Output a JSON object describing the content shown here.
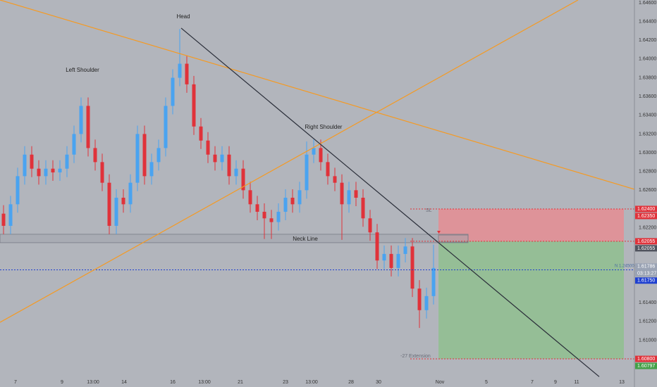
{
  "chart_data": {
    "type": "candlestick",
    "up_color": "#4aa3f0",
    "down_color": "#e0323a",
    "x": [
      1,
      3,
      5,
      7,
      9,
      11,
      13,
      15,
      17,
      19,
      21,
      23,
      25,
      27,
      29,
      31,
      33,
      35,
      37,
      39,
      41,
      43,
      45,
      47,
      49,
      51,
      53,
      55,
      57,
      59,
      61,
      63,
      65,
      67,
      69,
      71,
      73,
      75,
      77,
      79,
      81,
      83,
      85,
      87,
      89,
      91,
      93,
      95,
      97,
      99,
      101,
      103,
      105,
      107,
      109,
      111,
      113,
      115,
      117,
      119,
      121,
      123
    ],
    "open": [
      1.6235,
      1.6222,
      1.6245,
      1.6275,
      1.6298,
      1.6283,
      1.6275,
      1.6283,
      1.6279,
      1.6283,
      1.6298,
      1.632,
      1.635,
      1.6305,
      1.629,
      1.6268,
      1.6222,
      1.6252,
      1.6245,
      1.6268,
      1.632,
      1.6275,
      1.629,
      1.6305,
      1.635,
      1.638,
      1.6395,
      1.6373,
      1.6328,
      1.6313,
      1.6298,
      1.629,
      1.6298,
      1.6275,
      1.6283,
      1.626,
      1.6245,
      1.6237,
      1.623,
      1.6226,
      1.6237,
      1.6252,
      1.6245,
      1.626,
      1.6298,
      1.6305,
      1.629,
      1.6275,
      1.6268,
      1.6245,
      1.626,
      1.6252,
      1.623,
      1.6215,
      1.6185,
      1.6192,
      1.6177,
      1.6192,
      1.62,
      1.6155,
      1.6132,
      1.6147
    ],
    "high": [
      1.6244,
      1.6254,
      1.6284,
      1.6307,
      1.6307,
      1.6292,
      1.6292,
      1.6292,
      1.6292,
      1.6307,
      1.6329,
      1.6359,
      1.6359,
      1.6314,
      1.6299,
      1.6277,
      1.6261,
      1.6261,
      1.6277,
      1.6329,
      1.6329,
      1.6299,
      1.6314,
      1.6359,
      1.6389,
      1.6432,
      1.6404,
      1.6382,
      1.6337,
      1.6322,
      1.6307,
      1.6307,
      1.6307,
      1.6292,
      1.6292,
      1.6269,
      1.6254,
      1.6246,
      1.6239,
      1.6246,
      1.6261,
      1.6261,
      1.6269,
      1.6312,
      1.6314,
      1.6314,
      1.6299,
      1.6284,
      1.6277,
      1.6269,
      1.6269,
      1.6261,
      1.6239,
      1.6224,
      1.6201,
      1.6201,
      1.6201,
      1.6209,
      1.6209,
      1.6164,
      1.6156,
      1.6202
    ],
    "low": [
      1.6213,
      1.6213,
      1.6236,
      1.6266,
      1.6274,
      1.6266,
      1.6266,
      1.627,
      1.627,
      1.6274,
      1.6289,
      1.6311,
      1.6296,
      1.6281,
      1.6259,
      1.6213,
      1.6213,
      1.6236,
      1.6236,
      1.6259,
      1.6266,
      1.6266,
      1.6281,
      1.6296,
      1.6341,
      1.6371,
      1.6364,
      1.6319,
      1.6304,
      1.6289,
      1.6281,
      1.6281,
      1.6266,
      1.6266,
      1.6251,
      1.6236,
      1.6228,
      1.6208,
      1.6208,
      1.6217,
      1.6228,
      1.6236,
      1.6236,
      1.6251,
      1.6289,
      1.6281,
      1.6266,
      1.6259,
      1.6207,
      1.6236,
      1.6243,
      1.6221,
      1.6206,
      1.6176,
      1.6176,
      1.6168,
      1.6168,
      1.6183,
      1.6146,
      1.6113,
      1.6123,
      1.6138
    ],
    "close": [
      1.6222,
      1.6245,
      1.6275,
      1.6298,
      1.6283,
      1.6275,
      1.6283,
      1.6279,
      1.6283,
      1.6298,
      1.632,
      1.635,
      1.6305,
      1.629,
      1.6268,
      1.6222,
      1.6252,
      1.6245,
      1.6268,
      1.632,
      1.6275,
      1.629,
      1.6305,
      1.635,
      1.638,
      1.6395,
      1.6373,
      1.6328,
      1.6313,
      1.6298,
      1.629,
      1.6298,
      1.6275,
      1.6283,
      1.626,
      1.6245,
      1.6237,
      1.623,
      1.6226,
      1.6237,
      1.6252,
      1.6245,
      1.626,
      1.6298,
      1.6305,
      1.629,
      1.6275,
      1.6268,
      1.6245,
      1.626,
      1.6252,
      1.623,
      1.6215,
      1.6185,
      1.6192,
      1.6177,
      1.6192,
      1.62,
      1.6155,
      1.6132,
      1.6147,
      1.6177
    ],
    "xlim": [
      0,
      180
    ],
    "xticks": [
      {
        "value": 4.4,
        "label": "7"
      },
      {
        "value": 17.6,
        "label": "9"
      },
      {
        "value": 26.4,
        "label": "13:00"
      },
      {
        "value": 35.2,
        "label": "14"
      },
      {
        "value": 49,
        "label": "16"
      },
      {
        "value": 58,
        "label": "13:00"
      },
      {
        "value": 68.2,
        "label": "21"
      },
      {
        "value": 81,
        "label": "23"
      },
      {
        "value": 88.4,
        "label": "13:00"
      },
      {
        "value": 99.6,
        "label": "28"
      },
      {
        "value": 107.4,
        "label": "30"
      },
      {
        "value": 124.8,
        "label": "Nov"
      },
      {
        "value": 138,
        "label": "5"
      },
      {
        "value": 151,
        "label": "7"
      },
      {
        "value": 157.6,
        "label": "9"
      },
      {
        "value": 163.6,
        "label": "11"
      },
      {
        "value": 176.4,
        "label": "13"
      }
    ],
    "ylim": [
      1.605,
      1.6463
    ],
    "yticks": [
      {
        "value": 1.646,
        "label": "1.64600"
      },
      {
        "value": 1.644,
        "label": "1.64400"
      },
      {
        "value": 1.642,
        "label": "1.64200"
      },
      {
        "value": 1.64,
        "label": "1.64000"
      },
      {
        "value": 1.638,
        "label": "1.63800"
      },
      {
        "value": 1.636,
        "label": "1.63600"
      },
      {
        "value": 1.634,
        "label": "1.63400"
      },
      {
        "value": 1.632,
        "label": "1.63200"
      },
      {
        "value": 1.63,
        "label": "1.63000"
      },
      {
        "value": 1.628,
        "label": "1.62800"
      },
      {
        "value": 1.626,
        "label": "1.62600"
      },
      {
        "value": 1.622,
        "label": "1.62200"
      },
      {
        "value": 1.614,
        "label": "1.61400"
      },
      {
        "value": 1.612,
        "label": "1.61200"
      },
      {
        "value": 1.61,
        "label": "1.61000"
      }
    ],
    "trend_lines": [
      {
        "color": "#f59a23",
        "x": [
          0,
          180
        ],
        "y": [
          1.6463,
          1.6261
        ]
      },
      {
        "color": "#f59a23",
        "x": [
          0,
          164
        ],
        "y": [
          1.6119,
          1.6463
        ]
      },
      {
        "color": "#2a2e39",
        "x": [
          51.4,
          170
        ],
        "y": [
          1.6433,
          1.6061
        ]
      }
    ],
    "neck_line": {
      "color": "#787b86",
      "range": [
        1.6204,
        1.6213
      ],
      "x": [
        0,
        132.8
      ]
    },
    "current_price": {
      "value": 1.6175,
      "color": "#1e3fd0"
    },
    "position": {
      "x": [
        124.4,
        177
      ],
      "stop": 1.624,
      "entry": 1.62055,
      "target": 1.608,
      "stop_color": "#e58d93",
      "target_color": "#8fbf8f",
      "line_color": "#e0323a"
    },
    "price_labels": [
      {
        "value": 1.624,
        "label": "1.62400",
        "color": "#e0323a"
      },
      {
        "value": 1.6235,
        "label": "1.62350",
        "color": "#e0323a"
      },
      {
        "value": 1.62055,
        "label": "1.62055",
        "color": "#e0323a"
      },
      {
        "value": 1.62055,
        "label": "1.62055",
        "color": "#50535e"
      },
      {
        "value": 1.61786,
        "label": "1.61786",
        "color": "#9aa3b4",
        "countdown": "03:13:27"
      },
      {
        "value": 1.6175,
        "label": "1.61750",
        "color": "#1e3fd0"
      },
      {
        "value": 1.608,
        "label": "1.60800",
        "color": "#e0323a"
      },
      {
        "value": 1.60797,
        "label": "1.60797",
        "color": "#43a047"
      }
    ]
  },
  "annotations": {
    "head": "Head",
    "left_shoulder": "Left Shoulder",
    "right_shoulder": "Right Shoulder",
    "neck_line": "Neck Line",
    "sl": "SL",
    "extension": "-27 Extension",
    "order": "N 1.24500"
  }
}
